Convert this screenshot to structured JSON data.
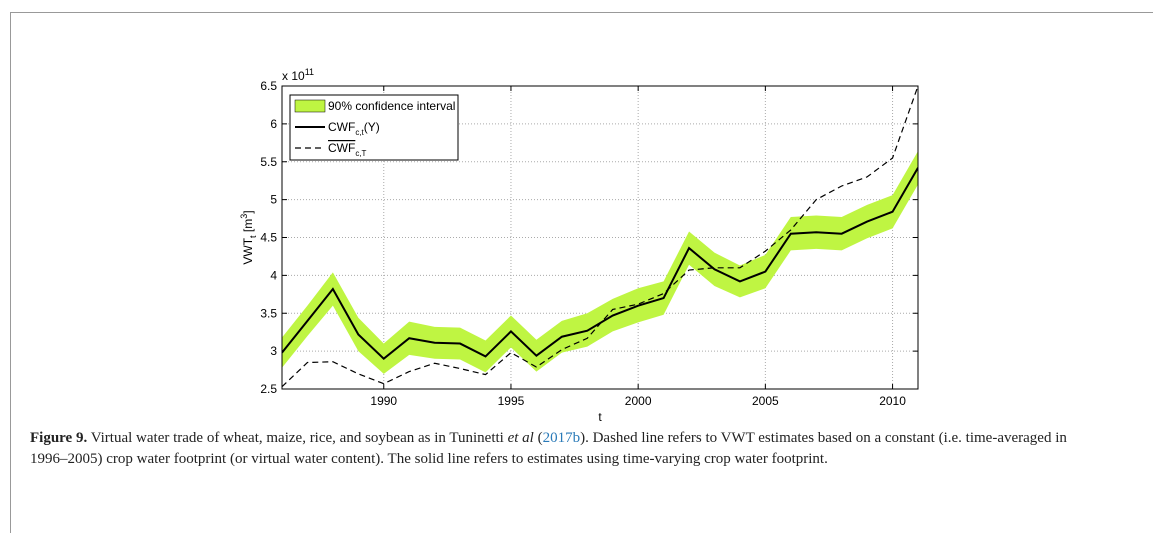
{
  "chart_data": {
    "type": "line",
    "axis_multiplier": {
      "base": "x 10",
      "exponent": "11"
    },
    "ylabel": {
      "text": "VWT",
      "sub": "t",
      "unit_open": " [m",
      "unit_sup": "3",
      "unit_close": "]"
    },
    "xlabel": "t",
    "x": [
      1986,
      1987,
      1988,
      1989,
      1990,
      1991,
      1992,
      1993,
      1994,
      1995,
      1996,
      1997,
      1998,
      1999,
      2000,
      2001,
      2002,
      2003,
      2004,
      2005,
      2006,
      2007,
      2008,
      2009,
      2010,
      2011
    ],
    "xlim": [
      1986,
      2011
    ],
    "xticks": [
      1990,
      1995,
      2000,
      2005,
      2010
    ],
    "ylim": [
      2.5,
      6.5
    ],
    "yticks": [
      2.5,
      3,
      3.5,
      4,
      4.5,
      5,
      5.5,
      6,
      6.5
    ],
    "grid": true,
    "legend": "upper-left",
    "series": [
      {
        "name": "90% confidence interval",
        "kind": "band",
        "color": "#bff542",
        "upper": [
          3.18,
          3.6,
          4.04,
          3.44,
          3.1,
          3.39,
          3.32,
          3.31,
          3.14,
          3.47,
          3.15,
          3.4,
          3.5,
          3.69,
          3.83,
          3.92,
          4.58,
          4.3,
          4.13,
          4.27,
          4.77,
          4.79,
          4.77,
          4.93,
          5.06,
          5.64
        ],
        "lower": [
          2.78,
          3.2,
          3.6,
          3.0,
          2.7,
          2.95,
          2.9,
          2.89,
          2.72,
          3.05,
          2.73,
          2.98,
          3.06,
          3.26,
          3.38,
          3.48,
          4.14,
          3.86,
          3.71,
          3.83,
          4.33,
          4.35,
          4.33,
          4.49,
          4.62,
          5.2
        ]
      },
      {
        "name": "CWF",
        "name_sub": "c,t",
        "name_suffix": "(Y)",
        "kind": "line",
        "style": "solid",
        "color": "#000000",
        "values": [
          2.98,
          3.4,
          3.82,
          3.22,
          2.9,
          3.17,
          3.11,
          3.1,
          2.93,
          3.26,
          2.94,
          3.19,
          3.27,
          3.47,
          3.6,
          3.7,
          4.36,
          4.08,
          3.92,
          4.05,
          4.55,
          4.57,
          4.55,
          4.71,
          4.84,
          5.42
        ]
      },
      {
        "name": "CWF",
        "name_sub": "c,T",
        "overline": true,
        "kind": "line",
        "style": "dashed",
        "color": "#000000",
        "values": [
          2.53,
          2.85,
          2.86,
          2.7,
          2.57,
          2.73,
          2.84,
          2.77,
          2.69,
          2.98,
          2.79,
          3.02,
          3.17,
          3.55,
          3.62,
          3.76,
          4.07,
          4.1,
          4.1,
          4.32,
          4.6,
          5.0,
          5.18,
          5.3,
          5.55,
          6.5
        ]
      }
    ]
  },
  "caption": {
    "label": "Figure 9.",
    "text1": " Virtual water trade of wheat, maize, rice, and soybean as in Tuninetti ",
    "italic": "et al",
    "text2": " (",
    "link": "2017b",
    "text3": "). Dashed line refers to VWT estimates based on a constant (i.e. time-averaged in 1996–2005) crop water footprint (or virtual water content). The solid line refers to estimates using time-varying crop water footprint."
  }
}
